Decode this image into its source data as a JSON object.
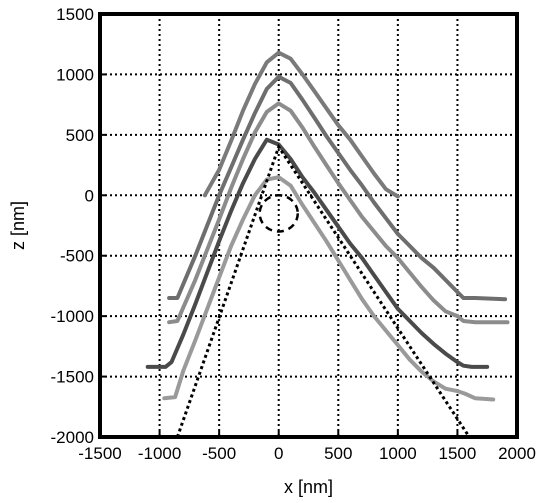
{
  "chart_data": {
    "type": "line",
    "xlabel": "x [nm]",
    "ylabel": "z [nm]",
    "xlim": [
      -1500,
      2000
    ],
    "ylim": [
      -2000,
      1500
    ],
    "xticks": [
      -1500,
      -1000,
      -500,
      0,
      500,
      1000,
      1500,
      2000
    ],
    "yticks": [
      -2000,
      -1500,
      -1000,
      -500,
      0,
      500,
      1000,
      1500
    ],
    "xtick_labels": [
      "-1500",
      "-1000",
      "-500",
      "0",
      "500",
      "1000",
      "1500",
      "2000"
    ],
    "ytick_labels": [
      "-2000",
      "-1500",
      "-1000",
      "-500",
      "0",
      "500",
      "1000",
      "1500"
    ],
    "grid": true,
    "series": [
      {
        "color": "#7a7a7a",
        "x": [
          -620,
          -500,
          -400,
          -300,
          -200,
          -100,
          0,
          100,
          200,
          300,
          400,
          500,
          600,
          700,
          800,
          900,
          1000
        ],
        "y": [
          0,
          210,
          450,
          700,
          920,
          1100,
          1180,
          1130,
          1000,
          860,
          720,
          580,
          460,
          320,
          180,
          50,
          -10
        ]
      },
      {
        "color": "#6e6e6e",
        "x": [
          -920,
          -850,
          -700,
          -600,
          -500,
          -400,
          -300,
          -200,
          -100,
          0,
          100,
          200,
          300,
          400,
          500,
          600,
          700,
          800,
          900,
          1000,
          1100,
          1200,
          1300,
          1400,
          1500,
          1550,
          1650,
          1900
        ],
        "y": [
          -850,
          -850,
          -500,
          -250,
          0,
          230,
          460,
          680,
          880,
          980,
          930,
          790,
          640,
          490,
          350,
          210,
          80,
          -60,
          -190,
          -320,
          -420,
          -520,
          -600,
          -700,
          -800,
          -850,
          -850,
          -860
        ]
      },
      {
        "color": "#8c8c8c",
        "x": [
          -920,
          -850,
          -700,
          -600,
          -500,
          -400,
          -300,
          -200,
          -100,
          0,
          100,
          200,
          300,
          400,
          500,
          600,
          700,
          800,
          900,
          1000,
          1100,
          1200,
          1300,
          1400,
          1500,
          1550,
          1650,
          1920
        ],
        "y": [
          -1050,
          -1040,
          -700,
          -450,
          -200,
          60,
          300,
          520,
          690,
          760,
          700,
          560,
          400,
          250,
          100,
          -40,
          -180,
          -300,
          -420,
          -520,
          -640,
          -760,
          -870,
          -960,
          -1000,
          -1040,
          -1050,
          -1050
        ]
      },
      {
        "color": "#4a4a4a",
        "x": [
          -1100,
          -950,
          -900,
          -800,
          -700,
          -600,
          -500,
          -400,
          -300,
          -200,
          -100,
          0,
          100,
          200,
          300,
          400,
          500,
          600,
          700,
          800,
          900,
          1000,
          1100,
          1200,
          1300,
          1400,
          1500,
          1550,
          1620,
          1750
        ],
        "y": [
          -1420,
          -1420,
          -1380,
          -1150,
          -900,
          -640,
          -380,
          -130,
          100,
          300,
          460,
          420,
          300,
          150,
          20,
          -120,
          -260,
          -400,
          -520,
          -660,
          -800,
          -940,
          -1040,
          -1140,
          -1230,
          -1310,
          -1380,
          -1410,
          -1420,
          -1420
        ]
      },
      {
        "color": "#9a9a9a",
        "x": [
          -960,
          -870,
          -800,
          -700,
          -600,
          -500,
          -400,
          -300,
          -200,
          -100,
          0,
          100,
          200,
          300,
          400,
          500,
          600,
          700,
          800,
          900,
          1000,
          1100,
          1200,
          1300,
          1400,
          1500,
          1560,
          1650,
          1800
        ],
        "y": [
          -1680,
          -1670,
          -1450,
          -1200,
          -940,
          -680,
          -420,
          -200,
          0,
          130,
          150,
          80,
          -80,
          -230,
          -380,
          -540,
          -700,
          -860,
          -1000,
          -1120,
          -1240,
          -1360,
          -1460,
          -1540,
          -1600,
          -1620,
          -1640,
          -1680,
          -1690
        ]
      }
    ],
    "annotations": [
      {
        "kind": "dotted-line",
        "x": [
          -850,
          0,
          1600
        ],
        "y": [
          -2000,
          400,
          -2000
        ]
      },
      {
        "kind": "dashed-circle",
        "x": 0,
        "y": -150,
        "rx": 160,
        "ry": 150
      }
    ]
  }
}
